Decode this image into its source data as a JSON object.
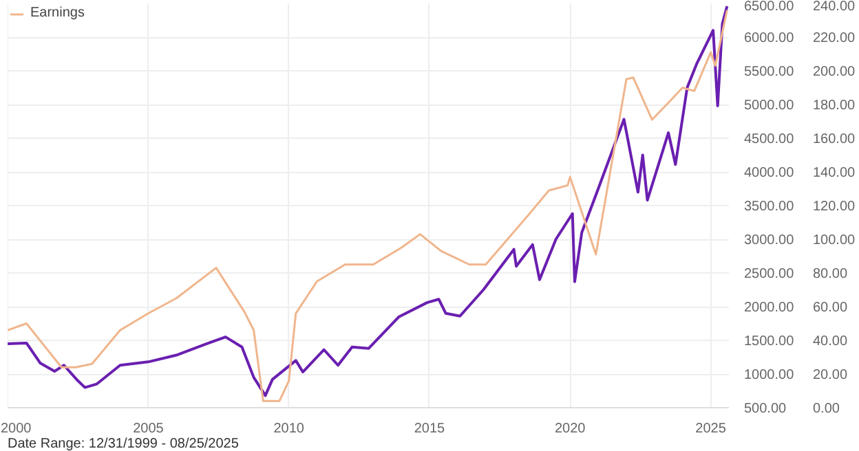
{
  "chart_data": {
    "type": "line",
    "xlim": [
      "1999-12-31",
      "2025-08-25"
    ],
    "xticks": [
      {
        "value": "2000-01-01",
        "label": "2000"
      },
      {
        "value": "2005-01-01",
        "label": "2005"
      },
      {
        "value": "2010-01-01",
        "label": "2010"
      },
      {
        "value": "2015-01-01",
        "label": "2015"
      },
      {
        "value": "2020-01-01",
        "label": "2020"
      },
      {
        "value": "2025-01-01",
        "label": "2025"
      }
    ],
    "ylim": [
      500,
      6500
    ],
    "yticks": [
      {
        "value": 500,
        "label": "500.00"
      },
      {
        "value": 1000,
        "label": "1000.00"
      },
      {
        "value": 1500,
        "label": "1500.00"
      },
      {
        "value": 2000,
        "label": "2000.00"
      },
      {
        "value": 2500,
        "label": "2500.00"
      },
      {
        "value": 3000,
        "label": "3000.00"
      },
      {
        "value": 3500,
        "label": "3500.00"
      },
      {
        "value": 4000,
        "label": "4000.00"
      },
      {
        "value": 4500,
        "label": "4500.00"
      },
      {
        "value": 5000,
        "label": "5000.00"
      },
      {
        "value": 5500,
        "label": "5500.00"
      },
      {
        "value": 6000,
        "label": "6000.00"
      },
      {
        "value": 6500,
        "label": "6500.00"
      }
    ],
    "y2lim": [
      0,
      240
    ],
    "y2ticks": [
      {
        "value": 0,
        "label": "0.00"
      },
      {
        "value": 20,
        "label": "20.00"
      },
      {
        "value": 40,
        "label": "40.00"
      },
      {
        "value": 60,
        "label": "60.00"
      },
      {
        "value": 80,
        "label": "80.00"
      },
      {
        "value": 100,
        "label": "100.00"
      },
      {
        "value": 120,
        "label": "120.00"
      },
      {
        "value": 140,
        "label": "140.00"
      },
      {
        "value": 160,
        "label": "160.00"
      },
      {
        "value": 180,
        "label": "180.00"
      },
      {
        "value": 200,
        "label": "200.00"
      },
      {
        "value": 220,
        "label": "220.00"
      },
      {
        "value": 240,
        "label": "240.00"
      }
    ],
    "grid": true,
    "legend": "top left",
    "line_style": "solid",
    "series": [
      {
        "color": "#6a1fb0",
        "x": [
          "2000-01",
          "2000-09",
          "2001-03",
          "2001-09",
          "2002-01",
          "2002-07",
          "2002-10",
          "2003-03",
          "2004-01",
          "2005-01",
          "2006-01",
          "2007-02",
          "2007-10",
          "2008-05",
          "2008-10",
          "2009-03",
          "2009-06",
          "2010-04",
          "2010-07",
          "2011-04",
          "2011-10",
          "2012-04",
          "2012-11",
          "2013-12",
          "2014-12",
          "2015-05",
          "2015-08",
          "2016-02",
          "2016-12",
          "2018-01",
          "2018-02",
          "2018-09",
          "2018-12",
          "2019-07",
          "2020-02",
          "2020-03",
          "2020-06",
          "2021-01",
          "2021-12",
          "2022-06",
          "2022-08",
          "2022-10",
          "2023-07",
          "2023-10",
          "2024-03",
          "2024-07",
          "2025-02",
          "2025-04",
          "2025-06",
          "2025-08"
        ],
        "values": [
          1450,
          1460,
          1160,
          1040,
          1130,
          900,
          800,
          850,
          1130,
          1180,
          1280,
          1450,
          1550,
          1400,
          950,
          680,
          920,
          1200,
          1030,
          1360,
          1130,
          1400,
          1380,
          1850,
          2060,
          2110,
          1900,
          1860,
          2250,
          2850,
          2600,
          2920,
          2400,
          3000,
          3380,
          2370,
          3100,
          3750,
          4780,
          3700,
          4250,
          3580,
          4580,
          4110,
          5250,
          5600,
          6100,
          4980,
          6200,
          6460
        ]
      },
      {
        "name": "Earnings",
        "color": "#f0b58c",
        "axis": "y2",
        "x": [
          "2000-01",
          "2000-09",
          "2001-12",
          "2002-06",
          "2003-01",
          "2004-01",
          "2005-01",
          "2006-01",
          "2007-06",
          "2008-06",
          "2008-10",
          "2009-02",
          "2009-09",
          "2010-01",
          "2010-04",
          "2011-01",
          "2012-01",
          "2013-01",
          "2014-01",
          "2014-09",
          "2015-06",
          "2016-06",
          "2017-01",
          "2018-07",
          "2019-04",
          "2019-12",
          "2020-01",
          "2020-12",
          "2022-01",
          "2022-04",
          "2022-12",
          "2023-07",
          "2024-01",
          "2024-06",
          "2025-01",
          "2025-03",
          "2025-08"
        ],
        "values": [
          46,
          50,
          24,
          24,
          26,
          46,
          56,
          65,
          83,
          57,
          46,
          4,
          4,
          16,
          56,
          75,
          85,
          85,
          95,
          103,
          93,
          85,
          85,
          114,
          129,
          132,
          137,
          91,
          195,
          196,
          171,
          181,
          190,
          188,
          211,
          203,
          236
        ]
      }
    ],
    "annotations": [
      "Date Range: 12/31/1999 - 08/25/2025"
    ]
  }
}
